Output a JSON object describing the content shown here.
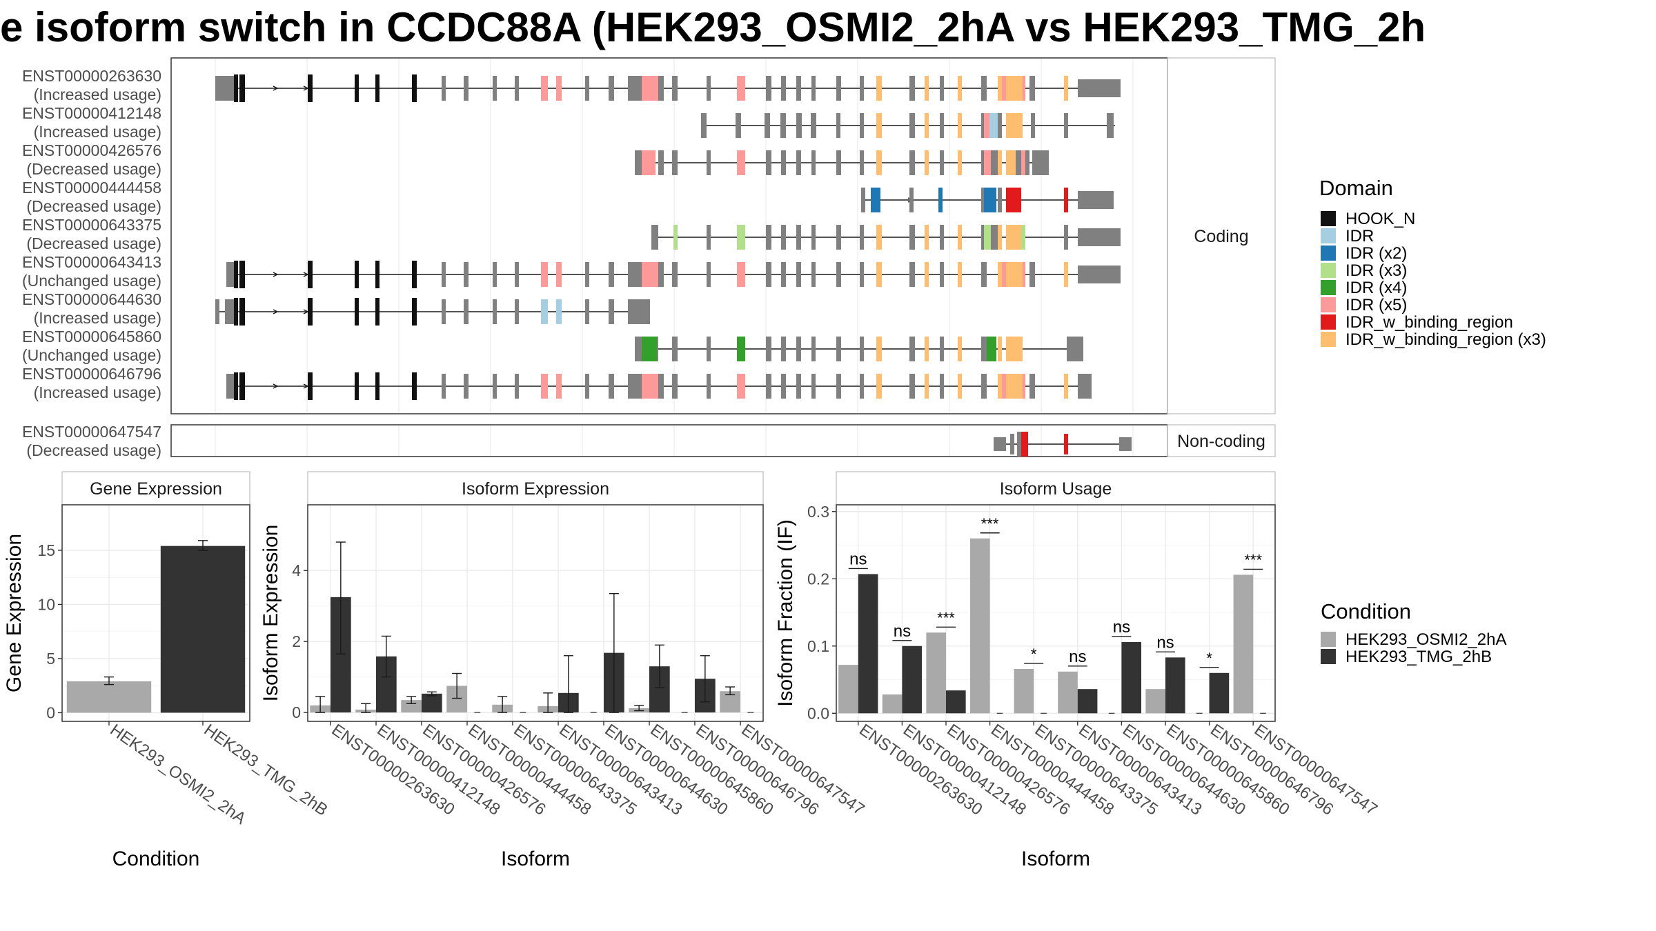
{
  "title": "e isoform switch in CCDC88A (HEK293_OSMI2_2hA vs HEK293_TMG_2h",
  "structure": {
    "facets": [
      "Coding",
      "Non-coding"
    ],
    "transcripts": [
      {
        "id": "ENST00000263630",
        "usage": "(Increased usage)",
        "facet": "Coding"
      },
      {
        "id": "ENST00000412148",
        "usage": "(Increased usage)",
        "facet": "Coding"
      },
      {
        "id": "ENST00000426576",
        "usage": "(Decreased usage)",
        "facet": "Coding"
      },
      {
        "id": "ENST00000444458",
        "usage": "(Decreased usage)",
        "facet": "Coding"
      },
      {
        "id": "ENST00000643375",
        "usage": "(Decreased usage)",
        "facet": "Coding"
      },
      {
        "id": "ENST00000643413",
        "usage": "(Unchanged usage)",
        "facet": "Coding"
      },
      {
        "id": "ENST00000644630",
        "usage": "(Increased usage)",
        "facet": "Coding"
      },
      {
        "id": "ENST00000645860",
        "usage": "(Unchanged usage)",
        "facet": "Coding"
      },
      {
        "id": "ENST00000646796",
        "usage": "(Increased usage)",
        "facet": "Coding"
      },
      {
        "id": "ENST00000647547",
        "usage": "(Decreased usage)",
        "facet": "Non-coding"
      }
    ],
    "domain_legend_title": "Domain",
    "domains": [
      {
        "name": "HOOK_N",
        "color": "#111111"
      },
      {
        "name": "IDR",
        "color": "#A6CEE3"
      },
      {
        "name": "IDR (x2)",
        "color": "#1F78B4"
      },
      {
        "name": "IDR (x3)",
        "color": "#B2DF8A"
      },
      {
        "name": "IDR (x4)",
        "color": "#33A02C"
      },
      {
        "name": "IDR (x5)",
        "color": "#FB9A99"
      },
      {
        "name": "IDR_w_binding_region",
        "color": "#E31A1C"
      },
      {
        "name": "IDR_w_binding_region (x3)",
        "color": "#FDBF6F"
      }
    ]
  },
  "condition_legend": {
    "title": "Condition",
    "items": [
      {
        "name": "HEK293_OSMI2_2hA",
        "color": "#A9A9A9"
      },
      {
        "name": "HEK293_TMG_2hB",
        "color": "#333333"
      }
    ]
  },
  "chart_data": [
    {
      "type": "bar",
      "panel": "Gene Expression",
      "xlabel": "Condition",
      "ylabel": "Gene Expression",
      "categories": [
        "HEK293_OSMI2_2hA",
        "HEK293_TMG_2hB"
      ],
      "values": [
        2.9,
        15.4
      ],
      "errors": [
        [
          2.6,
          3.3
        ],
        [
          15.0,
          15.9
        ]
      ],
      "ylim": [
        -0.8,
        19.2
      ],
      "yticks": [
        0,
        5,
        10,
        15
      ],
      "grid": true
    },
    {
      "type": "bar",
      "panel": "Isoform Expression",
      "xlabel": "Isoform",
      "ylabel": "Isoform Expression",
      "categories": [
        "ENST00000263630",
        "ENST00000412148",
        "ENST00000426576",
        "ENST00000444458",
        "ENST00000643375",
        "ENST00000643413",
        "ENST00000644630",
        "ENST00000645860",
        "ENST00000646796",
        "ENST00000647547"
      ],
      "series": [
        {
          "name": "HEK293_OSMI2_2hA",
          "values": [
            0.2,
            0.08,
            0.35,
            0.75,
            0.22,
            0.18,
            0.0,
            0.12,
            0.0,
            0.6
          ],
          "errors": [
            [
              0.0,
              0.45
            ],
            [
              0.0,
              0.25
            ],
            [
              0.25,
              0.45
            ],
            [
              0.4,
              1.1
            ],
            [
              0.0,
              0.45
            ],
            [
              0.0,
              0.55
            ],
            null,
            [
              0.05,
              0.2
            ],
            null,
            [
              0.5,
              0.72
            ]
          ]
        },
        {
          "name": "HEK293_TMG_2hB",
          "values": [
            3.25,
            1.58,
            0.53,
            0.0,
            0.0,
            0.55,
            1.68,
            1.3,
            0.95,
            0.0
          ],
          "errors": [
            [
              1.65,
              4.8
            ],
            [
              1.0,
              2.15
            ],
            [
              0.47,
              0.58
            ],
            null,
            null,
            [
              0.0,
              1.6
            ],
            [
              0.0,
              3.35
            ],
            [
              0.7,
              1.9
            ],
            [
              0.3,
              1.6
            ],
            null
          ]
        }
      ],
      "ylim": [
        -0.25,
        5.85
      ],
      "yticks": [
        0,
        2,
        4
      ],
      "grid": true
    },
    {
      "type": "bar",
      "panel": "Isoform Usage",
      "xlabel": "Isoform",
      "ylabel": "Isoform Fraction (IF)",
      "categories": [
        "ENST00000263630",
        "ENST00000412148",
        "ENST00000426576",
        "ENST00000444458",
        "ENST00000643375",
        "ENST00000643413",
        "ENST00000644630",
        "ENST00000645860",
        "ENST00000646796",
        "ENST00000647547"
      ],
      "series": [
        {
          "name": "HEK293_OSMI2_2hA",
          "values": [
            0.072,
            0.028,
            0.12,
            0.26,
            0.066,
            0.062,
            0.0,
            0.036,
            0.0,
            0.206
          ]
        },
        {
          "name": "HEK293_TMG_2hB",
          "values": [
            0.207,
            0.1,
            0.034,
            0.0,
            0.0,
            0.036,
            0.106,
            0.083,
            0.06,
            0.0
          ]
        }
      ],
      "significance": [
        "ns",
        "ns",
        "***",
        "***",
        "*",
        "ns",
        "ns",
        "ns",
        "*",
        "***"
      ],
      "ylim": [
        -0.012,
        0.31
      ],
      "yticks": [
        0.0,
        0.1,
        0.2,
        0.3
      ],
      "ytick_labels": [
        "0.0",
        "0.1",
        "0.2",
        "0.3"
      ],
      "grid": true
    }
  ]
}
